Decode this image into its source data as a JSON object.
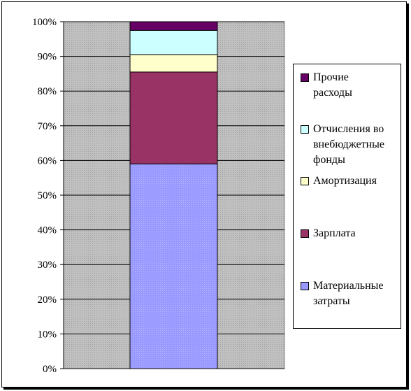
{
  "chart_data": {
    "type": "bar",
    "stacked": true,
    "percent": true,
    "categories": [
      ""
    ],
    "series": [
      {
        "name": "Материальные затраты",
        "values": [
          59
        ],
        "color": "#9999ff"
      },
      {
        "name": "Зарплата",
        "values": [
          26.5
        ],
        "color": "#993366"
      },
      {
        "name": "Амортизация",
        "values": [
          5
        ],
        "color": "#ffffcc"
      },
      {
        "name": "Отчисления во внебюджетные фонды",
        "values": [
          7
        ],
        "color": "#ccffff"
      },
      {
        "name": "Прочие расходы",
        "values": [
          2.5
        ],
        "color": "#660066"
      }
    ],
    "ylim": [
      0,
      100
    ],
    "yticks": [
      "0%",
      "10%",
      "20%",
      "30%",
      "40%",
      "50%",
      "60%",
      "70%",
      "80%",
      "90%",
      "100%"
    ],
    "grid": true,
    "legend_position": "right",
    "plot_background": "#c0c0c0"
  },
  "legend": {
    "items": [
      {
        "line1": "Прочие",
        "line2": "расходы",
        "line3": "",
        "color": "#660066"
      },
      {
        "line1": "Отчисления во",
        "line2": "внебюджетные",
        "line3": "фонды",
        "color": "#ccffff"
      },
      {
        "line1": "Амортизация",
        "line2": "",
        "line3": "",
        "color": "#ffffcc"
      },
      {
        "line1": "Зарплата",
        "line2": "",
        "line3": "",
        "color": "#993366"
      },
      {
        "line1": "Материальные",
        "line2": "затраты",
        "line3": "",
        "color": "#9999ff"
      }
    ]
  }
}
